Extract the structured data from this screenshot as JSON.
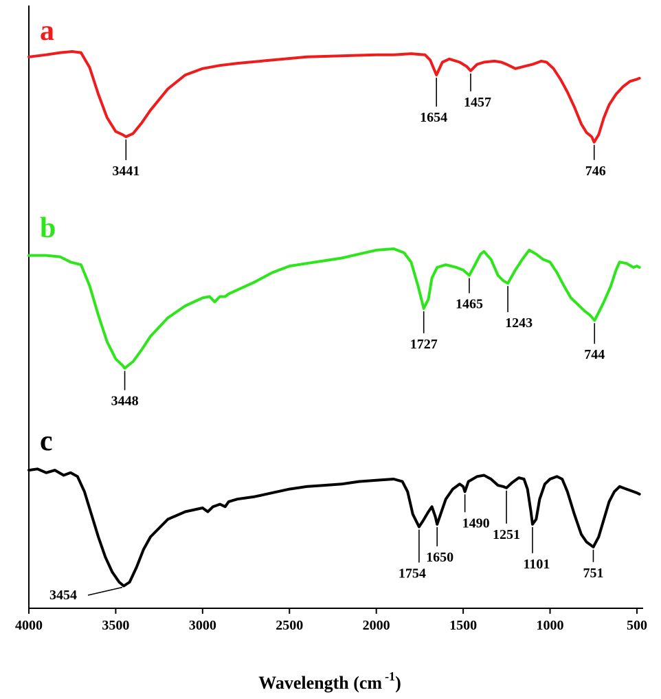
{
  "chart_data": {
    "type": "line",
    "title": "",
    "xlabel": "Wavelength (cm",
    "xlabel_superscript": "-1",
    "xlabel_suffix": ")",
    "ylabel": "",
    "xlim": [
      4000,
      480
    ],
    "x_reversed": true,
    "xticks": [
      4000,
      3500,
      3000,
      2500,
      2000,
      1500,
      1000,
      500
    ],
    "xtick_labels": [
      "4000",
      "3500",
      "3000",
      "2500",
      "2000",
      "1500",
      "1000",
      "500"
    ],
    "grid": false,
    "legend": "none",
    "series": [
      {
        "label": "a",
        "color": "#ee1c1c",
        "points": [
          [
            4000,
            0.95
          ],
          [
            3900,
            0.97
          ],
          [
            3820,
            0.99
          ],
          [
            3750,
            1.0
          ],
          [
            3700,
            0.99
          ],
          [
            3650,
            0.85
          ],
          [
            3600,
            0.6
          ],
          [
            3550,
            0.38
          ],
          [
            3500,
            0.25
          ],
          [
            3460,
            0.22
          ],
          [
            3441,
            0.2
          ],
          [
            3400,
            0.23
          ],
          [
            3350,
            0.33
          ],
          [
            3300,
            0.45
          ],
          [
            3200,
            0.65
          ],
          [
            3100,
            0.78
          ],
          [
            3000,
            0.84
          ],
          [
            2900,
            0.87
          ],
          [
            2800,
            0.89
          ],
          [
            2600,
            0.92
          ],
          [
            2400,
            0.95
          ],
          [
            2200,
            0.96
          ],
          [
            2000,
            0.97
          ],
          [
            1900,
            0.97
          ],
          [
            1800,
            0.98
          ],
          [
            1720,
            0.97
          ],
          [
            1690,
            0.92
          ],
          [
            1654,
            0.78
          ],
          [
            1620,
            0.9
          ],
          [
            1580,
            0.93
          ],
          [
            1520,
            0.9
          ],
          [
            1480,
            0.86
          ],
          [
            1457,
            0.82
          ],
          [
            1420,
            0.88
          ],
          [
            1380,
            0.9
          ],
          [
            1320,
            0.91
          ],
          [
            1280,
            0.9
          ],
          [
            1250,
            0.88
          ],
          [
            1200,
            0.84
          ],
          [
            1150,
            0.86
          ],
          [
            1100,
            0.88
          ],
          [
            1050,
            0.91
          ],
          [
            1020,
            0.9
          ],
          [
            980,
            0.84
          ],
          [
            940,
            0.74
          ],
          [
            900,
            0.62
          ],
          [
            860,
            0.48
          ],
          [
            820,
            0.32
          ],
          [
            790,
            0.24
          ],
          [
            760,
            0.2
          ],
          [
            746,
            0.15
          ],
          [
            720,
            0.22
          ],
          [
            690,
            0.38
          ],
          [
            660,
            0.5
          ],
          [
            620,
            0.6
          ],
          [
            580,
            0.67
          ],
          [
            540,
            0.72
          ],
          [
            500,
            0.74
          ],
          [
            485,
            0.75
          ]
        ]
      },
      {
        "label": "b",
        "color": "#2ee51c",
        "points": [
          [
            4000,
            0.95
          ],
          [
            3900,
            0.95
          ],
          [
            3820,
            0.94
          ],
          [
            3760,
            0.9
          ],
          [
            3700,
            0.88
          ],
          [
            3650,
            0.72
          ],
          [
            3600,
            0.5
          ],
          [
            3550,
            0.3
          ],
          [
            3500,
            0.17
          ],
          [
            3460,
            0.12
          ],
          [
            3448,
            0.1
          ],
          [
            3400,
            0.15
          ],
          [
            3350,
            0.24
          ],
          [
            3300,
            0.34
          ],
          [
            3200,
            0.48
          ],
          [
            3100,
            0.57
          ],
          [
            3000,
            0.63
          ],
          [
            2960,
            0.64
          ],
          [
            2930,
            0.6
          ],
          [
            2900,
            0.64
          ],
          [
            2870,
            0.64
          ],
          [
            2850,
            0.66
          ],
          [
            2800,
            0.69
          ],
          [
            2700,
            0.75
          ],
          [
            2600,
            0.82
          ],
          [
            2500,
            0.87
          ],
          [
            2400,
            0.89
          ],
          [
            2300,
            0.91
          ],
          [
            2200,
            0.93
          ],
          [
            2100,
            0.96
          ],
          [
            2000,
            0.99
          ],
          [
            1900,
            1.0
          ],
          [
            1840,
            0.97
          ],
          [
            1800,
            0.9
          ],
          [
            1760,
            0.72
          ],
          [
            1727,
            0.55
          ],
          [
            1700,
            0.62
          ],
          [
            1680,
            0.78
          ],
          [
            1650,
            0.86
          ],
          [
            1600,
            0.88
          ],
          [
            1540,
            0.86
          ],
          [
            1500,
            0.84
          ],
          [
            1465,
            0.8
          ],
          [
            1440,
            0.86
          ],
          [
            1400,
            0.96
          ],
          [
            1380,
            0.98
          ],
          [
            1340,
            0.92
          ],
          [
            1300,
            0.8
          ],
          [
            1270,
            0.76
          ],
          [
            1243,
            0.74
          ],
          [
            1200,
            0.84
          ],
          [
            1160,
            0.92
          ],
          [
            1120,
            0.99
          ],
          [
            1080,
            0.96
          ],
          [
            1040,
            0.92
          ],
          [
            1000,
            0.9
          ],
          [
            960,
            0.82
          ],
          [
            920,
            0.72
          ],
          [
            880,
            0.63
          ],
          [
            840,
            0.58
          ],
          [
            800,
            0.53
          ],
          [
            770,
            0.5
          ],
          [
            744,
            0.46
          ],
          [
            720,
            0.52
          ],
          [
            690,
            0.6
          ],
          [
            650,
            0.72
          ],
          [
            620,
            0.84
          ],
          [
            600,
            0.9
          ],
          [
            560,
            0.89
          ],
          [
            520,
            0.86
          ],
          [
            500,
            0.87
          ],
          [
            485,
            0.86
          ]
        ]
      },
      {
        "label": "c",
        "color": "#000000",
        "points": [
          [
            4000,
            0.95
          ],
          [
            3950,
            0.96
          ],
          [
            3900,
            0.93
          ],
          [
            3850,
            0.95
          ],
          [
            3800,
            0.91
          ],
          [
            3760,
            0.93
          ],
          [
            3720,
            0.9
          ],
          [
            3680,
            0.78
          ],
          [
            3640,
            0.6
          ],
          [
            3600,
            0.42
          ],
          [
            3560,
            0.26
          ],
          [
            3520,
            0.14
          ],
          [
            3480,
            0.06
          ],
          [
            3454,
            0.03
          ],
          [
            3420,
            0.06
          ],
          [
            3380,
            0.18
          ],
          [
            3340,
            0.32
          ],
          [
            3300,
            0.42
          ],
          [
            3200,
            0.56
          ],
          [
            3100,
            0.62
          ],
          [
            3000,
            0.65
          ],
          [
            2970,
            0.62
          ],
          [
            2940,
            0.66
          ],
          [
            2900,
            0.68
          ],
          [
            2870,
            0.66
          ],
          [
            2850,
            0.7
          ],
          [
            2800,
            0.72
          ],
          [
            2700,
            0.74
          ],
          [
            2600,
            0.77
          ],
          [
            2500,
            0.8
          ],
          [
            2400,
            0.82
          ],
          [
            2300,
            0.83
          ],
          [
            2200,
            0.84
          ],
          [
            2100,
            0.86
          ],
          [
            2000,
            0.87
          ],
          [
            1900,
            0.88
          ],
          [
            1850,
            0.86
          ],
          [
            1820,
            0.78
          ],
          [
            1790,
            0.6
          ],
          [
            1754,
            0.5
          ],
          [
            1730,
            0.55
          ],
          [
            1700,
            0.62
          ],
          [
            1680,
            0.66
          ],
          [
            1660,
            0.58
          ],
          [
            1650,
            0.52
          ],
          [
            1630,
            0.6
          ],
          [
            1600,
            0.72
          ],
          [
            1560,
            0.8
          ],
          [
            1520,
            0.84
          ],
          [
            1500,
            0.82
          ],
          [
            1490,
            0.78
          ],
          [
            1470,
            0.86
          ],
          [
            1420,
            0.9
          ],
          [
            1380,
            0.91
          ],
          [
            1340,
            0.88
          ],
          [
            1300,
            0.83
          ],
          [
            1270,
            0.82
          ],
          [
            1251,
            0.81
          ],
          [
            1220,
            0.85
          ],
          [
            1180,
            0.89
          ],
          [
            1150,
            0.88
          ],
          [
            1130,
            0.8
          ],
          [
            1110,
            0.62
          ],
          [
            1101,
            0.52
          ],
          [
            1080,
            0.56
          ],
          [
            1060,
            0.72
          ],
          [
            1030,
            0.84
          ],
          [
            1000,
            0.88
          ],
          [
            960,
            0.9
          ],
          [
            930,
            0.88
          ],
          [
            900,
            0.78
          ],
          [
            860,
            0.6
          ],
          [
            820,
            0.44
          ],
          [
            790,
            0.38
          ],
          [
            751,
            0.34
          ],
          [
            720,
            0.42
          ],
          [
            690,
            0.56
          ],
          [
            660,
            0.7
          ],
          [
            630,
            0.78
          ],
          [
            600,
            0.82
          ],
          [
            560,
            0.8
          ],
          [
            520,
            0.78
          ],
          [
            500,
            0.77
          ],
          [
            485,
            0.76
          ]
        ]
      }
    ],
    "peaks": [
      {
        "series": "a",
        "label": "3441",
        "x": 3441
      },
      {
        "series": "a",
        "label": "1654",
        "x": 1654
      },
      {
        "series": "a",
        "label": "1457",
        "x": 1457
      },
      {
        "series": "a",
        "label": "746",
        "x": 746
      },
      {
        "series": "b",
        "label": "3448",
        "x": 3448
      },
      {
        "series": "b",
        "label": "1727",
        "x": 1727
      },
      {
        "series": "b",
        "label": "1465",
        "x": 1465
      },
      {
        "series": "b",
        "label": "1243",
        "x": 1243
      },
      {
        "series": "b",
        "label": "744",
        "x": 744
      },
      {
        "series": "c",
        "label": "3454",
        "x": 3454
      },
      {
        "series": "c",
        "label": "1754",
        "x": 1754
      },
      {
        "series": "c",
        "label": "1650",
        "x": 1650
      },
      {
        "series": "c",
        "label": "1490",
        "x": 1490
      },
      {
        "series": "c",
        "label": "1251",
        "x": 1251
      },
      {
        "series": "c",
        "label": "1101",
        "x": 1101
      },
      {
        "series": "c",
        "label": "751",
        "x": 751
      }
    ]
  }
}
